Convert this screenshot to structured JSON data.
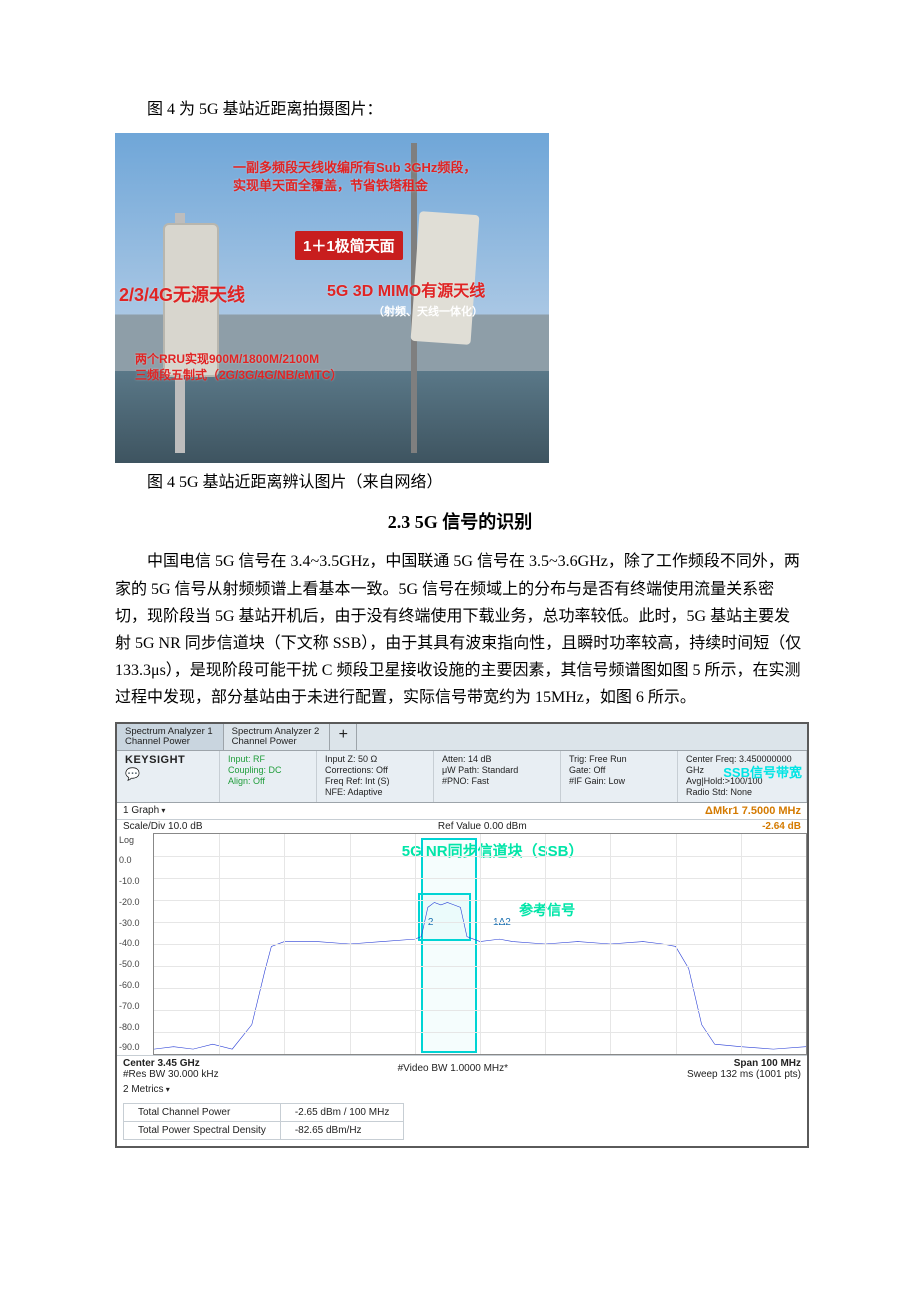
{
  "intro_line": "图 4 为 5G 基站近距离拍摄图片：",
  "fig4": {
    "caption": "图 4 5G 基站近距离辨认图片（来自网络）",
    "top_annot_line1": "一副多频段天线收编所有Sub 3GHz频段，",
    "top_annot_line2": "实现单天面全覆盖，节省铁塔租金",
    "center_box": "1＋1极简天面",
    "left_box": "2/3/4G无源天线",
    "right_box_line1": "5G 3D MIMO有源天线",
    "right_box_line2": "（射频、天线一体化）",
    "left_sub_line1": "两个RRU实现900M/1800M/2100M",
    "left_sub_line2": "三频段五制式（2G/3G/4G/NB/eMTC）"
  },
  "section_heading": "2.3 5G 信号的识别",
  "body_para": "中国电信 5G 信号在 3.4~3.5GHz，中国联通 5G 信号在 3.5~3.6GHz，除了工作频段不同外，两家的 5G 信号从射频频谱上看基本一致。5G 信号在频域上的分布与是否有终端使用流量关系密切，现阶段当 5G 基站开机后，由于没有终端使用下载业务，总功率较低。此时，5G 基站主要发射 5G NR 同步信道块（下文称 SSB），由于其具有波束指向性，且瞬时功率较高，持续时间短（仅 133.3μs），是现阶段可能干扰 C 频段卫星接收设施的主要因素，其信号频谱图如图 5 所示，在实测过程中发现，部分基站由于未进行配置，实际信号带宽约为 15MHz，如图 6 所示。",
  "analyzer": {
    "tabs": {
      "t1_line1": "Spectrum Analyzer 1",
      "t1_line2": "Channel Power",
      "t2_line1": "Spectrum Analyzer 2",
      "t2_line2": "Channel Power",
      "plus": "+"
    },
    "info": {
      "brand": "KEYSIGHT",
      "col1_l1": "Input: RF",
      "col1_l2": "Coupling: DC",
      "col1_l3": "Align: Off",
      "col2_l1": "Input Z: 50 Ω",
      "col2_l2": "Corrections: Off",
      "col2_l3": "Freq Ref: Int (S)",
      "col2_l4": "NFE: Adaptive",
      "col3_l1": "Atten: 14 dB",
      "col3_l2": "μW Path: Standard",
      "col3_l3": "#PNO: Fast",
      "col4_l1": "Trig: Free Run",
      "col4_l2": "Gate: Off",
      "col4_l3": "#IF Gain: Low",
      "col5_l1": "Center Freq: 3.450000000 GHz",
      "col5_l2": "Avg|Hold:>100/100",
      "col5_l3": "Radio Std: None",
      "badge": "SSB信号带宽"
    },
    "graph_header_left": "1 Graph",
    "marker_label": "ΔMkr1  7.5000 MHz",
    "scale_div": "Scale/Div 10.0 dB",
    "ref_value": "Ref Value 0.00 dBm",
    "marker_value": "-2.64 dB",
    "y_ticks": [
      "Log",
      "0.0",
      "-10.0",
      "-20.0",
      "-30.0",
      "-40.0",
      "-50.0",
      "-60.0",
      "-70.0",
      "-80.0",
      "-90.0"
    ],
    "annot_ssb": "5G  NR同步信道块（SSB）",
    "annot_ref": "参考信号",
    "m2_lbl": "2",
    "m1d2_lbl": "1Δ2",
    "footer_left_l1": "Center 3.45 GHz",
    "footer_left_l2": "#Res BW 30.000 kHz",
    "footer_mid": "#Video BW 1.0000 MHz*",
    "footer_right_l1": "Span 100 MHz",
    "footer_right_l2": "Sweep 132 ms (1001 pts)",
    "metrics_label": "2 Metrics",
    "tbl_r1c1": "Total Channel Power",
    "tbl_r1c2": "-2.65 dBm / 100 MHz",
    "tbl_r2c1": "Total Power Spectral Density",
    "tbl_r2c2": "-82.65 dBm/Hz",
    "spectrum": {
      "xlim": [
        0,
        100
      ],
      "ylim_db": [
        -90,
        0
      ],
      "points": [
        [
          0,
          -88
        ],
        [
          3,
          -87
        ],
        [
          6,
          -88
        ],
        [
          9,
          -86
        ],
        [
          12,
          -88
        ],
        [
          15,
          -78
        ],
        [
          17,
          -56
        ],
        [
          18,
          -46
        ],
        [
          20,
          -44
        ],
        [
          25,
          -44
        ],
        [
          30,
          -45
        ],
        [
          35,
          -44
        ],
        [
          40,
          -43
        ],
        [
          41,
          -42
        ],
        [
          42,
          -30
        ],
        [
          43,
          -28
        ],
        [
          44,
          -29
        ],
        [
          45,
          -28
        ],
        [
          46,
          -29
        ],
        [
          47,
          -30
        ],
        [
          48,
          -42
        ],
        [
          50,
          -44
        ],
        [
          53,
          -43
        ],
        [
          55,
          -44
        ],
        [
          60,
          -45
        ],
        [
          65,
          -44
        ],
        [
          70,
          -45
        ],
        [
          75,
          -44
        ],
        [
          78,
          -45
        ],
        [
          80,
          -46
        ],
        [
          82,
          -55
        ],
        [
          84,
          -78
        ],
        [
          86,
          -86
        ],
        [
          90,
          -87
        ],
        [
          95,
          -88
        ],
        [
          100,
          -87
        ]
      ],
      "line_color": "#2a3fd6",
      "grid_color": "#e6e6e6"
    }
  }
}
